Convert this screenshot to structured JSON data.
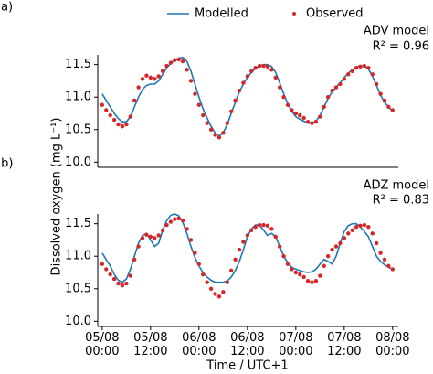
{
  "chart_data": [
    {
      "type": "line",
      "label": "(a)",
      "model_label": "ADV model",
      "r2_label": "R² = 0.96",
      "ylabel": "Dissolved oxygen (mg L⁻¹)",
      "xlim": [
        -1.1,
        73.4
      ],
      "ylim": [
        9.92,
        11.65
      ],
      "yticks": [
        {
          "value": 10.0,
          "label": "10.0"
        },
        {
          "value": 10.5,
          "label": "10.5"
        },
        {
          "value": 11.0,
          "label": "11.0"
        },
        {
          "value": 11.5,
          "label": "11.5"
        }
      ],
      "x": [
        0,
        1,
        2,
        3,
        4,
        5,
        6,
        7,
        8,
        9,
        10,
        11,
        12,
        13,
        14,
        15,
        16,
        17,
        18,
        19,
        20,
        21,
        22,
        23,
        24,
        25,
        26,
        27,
        28,
        29,
        30,
        31,
        32,
        33,
        34,
        35,
        36,
        37,
        38,
        39,
        40,
        41,
        42,
        43,
        44,
        45,
        46,
        47,
        48,
        49,
        50,
        51,
        52,
        53,
        54,
        55,
        56,
        57,
        58,
        59,
        60,
        61,
        62,
        63,
        64,
        65,
        66,
        67,
        68,
        69,
        70,
        71,
        72
      ],
      "series": [
        {
          "name": "Modelled",
          "color": "#1f77b4",
          "style": "line",
          "values": [
            11.05,
            10.95,
            10.85,
            10.75,
            10.67,
            10.62,
            10.62,
            10.7,
            10.85,
            11.0,
            11.12,
            11.18,
            11.2,
            11.2,
            11.25,
            11.35,
            11.45,
            11.52,
            11.57,
            11.6,
            11.61,
            11.55,
            11.4,
            11.2,
            11.0,
            10.82,
            10.68,
            10.55,
            10.45,
            10.4,
            10.45,
            10.58,
            10.75,
            10.92,
            11.08,
            11.2,
            11.3,
            11.38,
            11.44,
            11.48,
            11.5,
            11.5,
            11.47,
            11.38,
            11.22,
            11.05,
            10.9,
            10.78,
            10.7,
            10.66,
            10.63,
            10.6,
            10.6,
            10.63,
            10.72,
            10.85,
            10.98,
            11.08,
            11.15,
            11.22,
            11.3,
            11.37,
            11.42,
            11.46,
            11.48,
            11.48,
            11.43,
            11.32,
            11.18,
            11.03,
            10.92,
            10.85,
            10.78
          ]
        },
        {
          "name": "Observed",
          "color": "#d62728",
          "style": "points",
          "values": [
            10.88,
            10.8,
            10.72,
            10.65,
            10.58,
            10.55,
            10.58,
            10.7,
            10.95,
            11.15,
            11.28,
            11.33,
            11.3,
            11.28,
            11.32,
            11.4,
            11.48,
            11.53,
            11.57,
            11.58,
            11.55,
            11.42,
            11.25,
            11.05,
            10.88,
            10.72,
            10.6,
            10.5,
            10.42,
            10.38,
            10.45,
            10.6,
            10.78,
            10.95,
            11.1,
            11.22,
            11.32,
            11.4,
            11.45,
            11.48,
            11.48,
            11.47,
            11.42,
            11.3,
            11.15,
            11.0,
            10.88,
            10.8,
            10.75,
            10.72,
            10.68,
            10.62,
            10.6,
            10.62,
            10.7,
            10.85,
            11.0,
            11.1,
            11.15,
            11.2,
            11.28,
            11.35,
            11.4,
            11.45,
            11.47,
            11.48,
            11.45,
            11.35,
            11.2,
            11.05,
            10.95,
            10.85,
            10.8
          ]
        }
      ]
    },
    {
      "type": "line",
      "label": "(b)",
      "model_label": "ADZ model",
      "r2_label": "R² = 0.83",
      "xlabel": "Time / UTC+1",
      "xlim": [
        -1.1,
        73.4
      ],
      "ylim": [
        9.92,
        11.65
      ],
      "yticks": [
        {
          "value": 10.0,
          "label": "10.0"
        },
        {
          "value": 10.5,
          "label": "10.5"
        },
        {
          "value": 11.0,
          "label": "11.0"
        },
        {
          "value": 11.5,
          "label": "11.5"
        }
      ],
      "xticks": [
        {
          "value": 0,
          "label": "05/08\n00:00"
        },
        {
          "value": 12,
          "label": "05/08\n12:00"
        },
        {
          "value": 24,
          "label": "06/08\n00:00"
        },
        {
          "value": 36,
          "label": "06/08\n12:00"
        },
        {
          "value": 48,
          "label": "07/08\n00:00"
        },
        {
          "value": 60,
          "label": "07/08\n12:00"
        },
        {
          "value": 72,
          "label": "08/08\n00:00"
        }
      ],
      "x": [
        0,
        1,
        2,
        3,
        4,
        5,
        6,
        7,
        8,
        9,
        10,
        11,
        12,
        13,
        14,
        15,
        16,
        17,
        18,
        19,
        20,
        21,
        22,
        23,
        24,
        25,
        26,
        27,
        28,
        29,
        30,
        31,
        32,
        33,
        34,
        35,
        36,
        37,
        38,
        39,
        40,
        41,
        42,
        43,
        44,
        45,
        46,
        47,
        48,
        49,
        50,
        51,
        52,
        53,
        54,
        55,
        56,
        57,
        58,
        59,
        60,
        61,
        62,
        63,
        64,
        65,
        66,
        67,
        68,
        69,
        70,
        71,
        72
      ],
      "series": [
        {
          "color": "#1f77b4",
          "style": "line",
          "values": [
            11.05,
            10.95,
            10.85,
            10.72,
            10.63,
            10.6,
            10.65,
            10.8,
            11.0,
            11.2,
            11.32,
            11.35,
            11.25,
            11.15,
            11.2,
            11.4,
            11.55,
            11.63,
            11.65,
            11.62,
            11.52,
            11.35,
            11.15,
            10.98,
            10.85,
            10.75,
            10.68,
            10.63,
            10.6,
            10.6,
            10.6,
            10.62,
            10.68,
            10.78,
            10.92,
            11.1,
            11.3,
            11.42,
            11.48,
            11.48,
            11.4,
            11.32,
            11.35,
            11.3,
            11.15,
            11.0,
            10.9,
            10.83,
            10.8,
            10.78,
            10.76,
            10.75,
            10.76,
            10.8,
            10.88,
            10.95,
            10.92,
            10.88,
            11.0,
            11.2,
            11.38,
            11.47,
            11.5,
            11.5,
            11.45,
            11.38,
            11.3,
            11.15,
            11.0,
            10.92,
            10.87,
            10.83,
            10.8
          ]
        },
        {
          "color": "#d62728",
          "style": "points",
          "values": [
            10.88,
            10.8,
            10.72,
            10.65,
            10.58,
            10.55,
            10.58,
            10.7,
            10.95,
            11.15,
            11.28,
            11.33,
            11.3,
            11.28,
            11.32,
            11.4,
            11.48,
            11.53,
            11.57,
            11.58,
            11.55,
            11.42,
            11.25,
            11.05,
            10.88,
            10.72,
            10.6,
            10.5,
            10.42,
            10.38,
            10.45,
            10.6,
            10.78,
            10.95,
            11.1,
            11.22,
            11.32,
            11.4,
            11.45,
            11.48,
            11.48,
            11.47,
            11.42,
            11.3,
            11.15,
            11.0,
            10.88,
            10.8,
            10.75,
            10.72,
            10.68,
            10.62,
            10.6,
            10.62,
            10.7,
            10.85,
            11.0,
            11.1,
            11.15,
            11.2,
            11.28,
            11.35,
            11.4,
            11.45,
            11.47,
            11.48,
            11.45,
            11.35,
            11.2,
            11.05,
            10.95,
            10.85,
            10.8
          ]
        }
      ]
    }
  ]
}
